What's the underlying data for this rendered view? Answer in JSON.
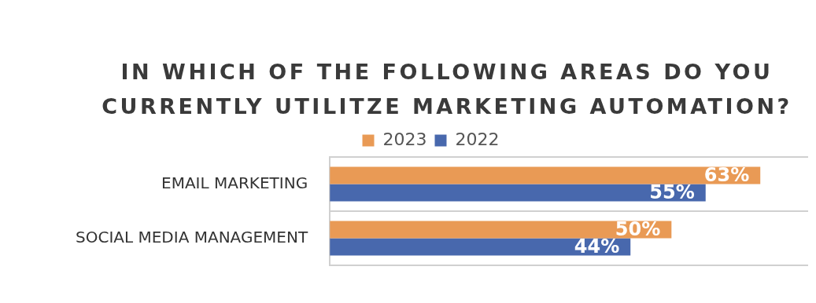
{
  "chart_data": {
    "type": "bar",
    "orientation": "horizontal",
    "title": "IN WHICH OF THE FOLLOWING AREAS DO YOU CURRENTLY UTILITZE MARKETING AUTOMATION?",
    "categories": [
      "EMAIL MARKETING",
      "SOCIAL MEDIA MANAGEMENT"
    ],
    "series": [
      {
        "name": "2023",
        "color": "#e99a55",
        "values": [
          63,
          50
        ],
        "value_labels": [
          "63%",
          "50%"
        ]
      },
      {
        "name": "2022",
        "color": "#4868ad",
        "values": [
          55,
          44
        ],
        "value_labels": [
          "55%",
          "44%"
        ]
      }
    ],
    "legend": "top",
    "grid": "y"
  }
}
